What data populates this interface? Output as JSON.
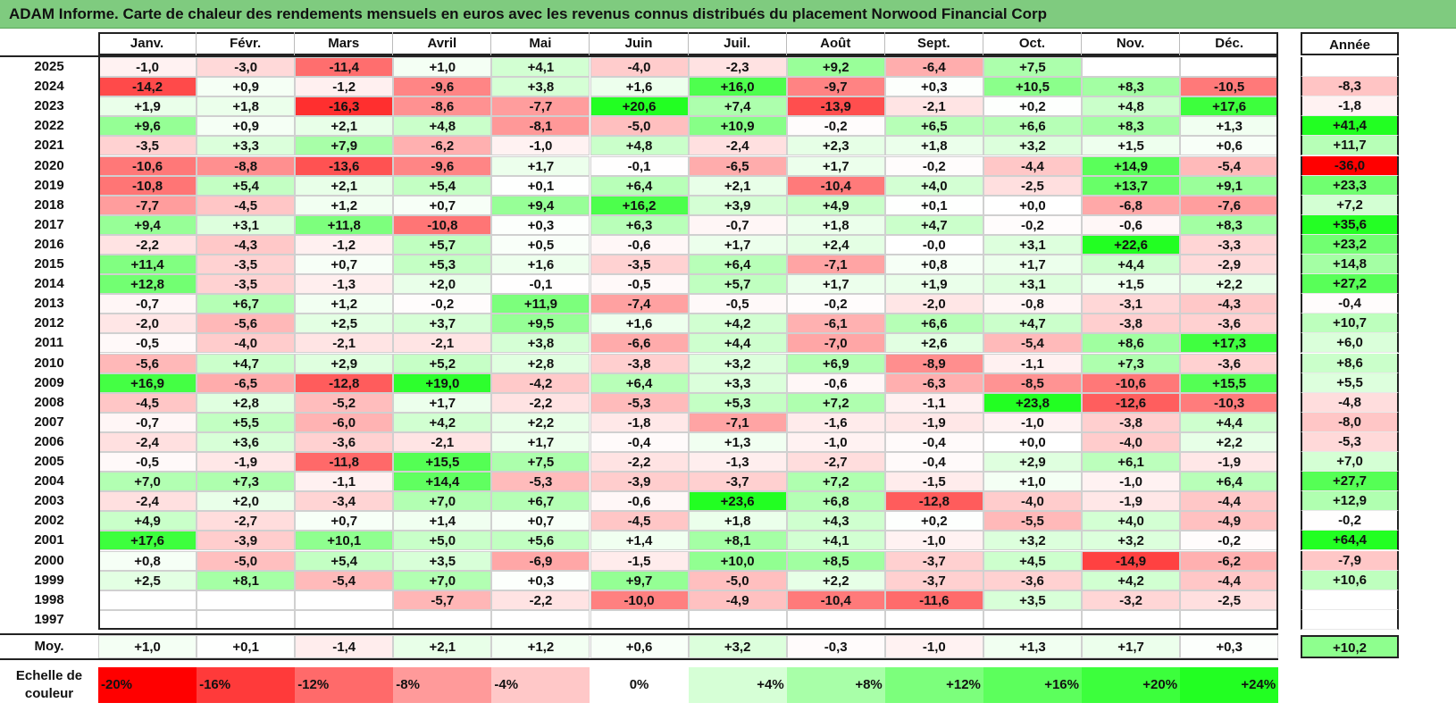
{
  "title": "ADAM Informe. Carte de chaleur des rendements mensuels en euros avec les revenus connus distribués du placement Norwood Financial Corp",
  "chart_data": {
    "type": "heatmap",
    "columns": [
      "Janv.",
      "Févr.",
      "Mars",
      "Avril",
      "Mai",
      "Juin",
      "Juil.",
      "Août",
      "Sept.",
      "Oct.",
      "Nov.",
      "Déc."
    ],
    "year_column": "Année",
    "rows": [
      {
        "year": "2025",
        "months": [
          "-1,0",
          "-3,0",
          "-11,4",
          "+1,0",
          "+4,1",
          "-4,0",
          "-2,3",
          "+9,2",
          "-6,4",
          "+7,5",
          "",
          ""
        ],
        "annual": ""
      },
      {
        "year": "2024",
        "months": [
          "-14,2",
          "+0,9",
          "-1,2",
          "-9,6",
          "+3,8",
          "+1,6",
          "+16,0",
          "-9,7",
          "+0,3",
          "+10,5",
          "+8,3",
          "-10,5"
        ],
        "annual": "-8,3"
      },
      {
        "year": "2023",
        "months": [
          "+1,9",
          "+1,8",
          "-16,3",
          "-8,6",
          "-7,7",
          "+20,6",
          "+7,4",
          "-13,9",
          "-2,1",
          "+0,2",
          "+4,8",
          "+17,6"
        ],
        "annual": "-1,8"
      },
      {
        "year": "2022",
        "months": [
          "+9,6",
          "+0,9",
          "+2,1",
          "+4,8",
          "-8,1",
          "-5,0",
          "+10,9",
          "-0,2",
          "+6,5",
          "+6,6",
          "+8,3",
          "+1,3"
        ],
        "annual": "+41,4"
      },
      {
        "year": "2021",
        "months": [
          "-3,5",
          "+3,3",
          "+7,9",
          "-6,2",
          "-1,0",
          "+4,8",
          "-2,4",
          "+2,3",
          "+1,8",
          "+3,2",
          "+1,5",
          "+0,6"
        ],
        "annual": "+11,7"
      },
      {
        "year": "2020",
        "months": [
          "-10,6",
          "-8,8",
          "-13,6",
          "-9,6",
          "+1,7",
          "-0,1",
          "-6,5",
          "+1,7",
          "-0,2",
          "-4,4",
          "+14,9",
          "-5,4"
        ],
        "annual": "-36,0"
      },
      {
        "year": "2019",
        "months": [
          "-10,8",
          "+5,4",
          "+2,1",
          "+5,4",
          "+0,1",
          "+6,4",
          "+2,1",
          "-10,4",
          "+4,0",
          "-2,5",
          "+13,7",
          "+9,1"
        ],
        "annual": "+23,3"
      },
      {
        "year": "2018",
        "months": [
          "-7,7",
          "-4,5",
          "+1,2",
          "+0,7",
          "+9,4",
          "+16,2",
          "+3,9",
          "+4,9",
          "+0,1",
          "+0,0",
          "-6,8",
          "-7,6"
        ],
        "annual": "+7,2"
      },
      {
        "year": "2017",
        "months": [
          "+9,4",
          "+3,1",
          "+11,8",
          "-10,8",
          "+0,3",
          "+6,3",
          "-0,7",
          "+1,8",
          "+4,7",
          "-0,2",
          "-0,6",
          "+8,3"
        ],
        "annual": "+35,6"
      },
      {
        "year": "2016",
        "months": [
          "-2,2",
          "-4,3",
          "-1,2",
          "+5,7",
          "+0,5",
          "-0,6",
          "+1,7",
          "+2,4",
          "-0,0",
          "+3,1",
          "+22,6",
          "-3,3"
        ],
        "annual": "+23,2"
      },
      {
        "year": "2015",
        "months": [
          "+11,4",
          "-3,5",
          "+0,7",
          "+5,3",
          "+1,6",
          "-3,5",
          "+6,4",
          "-7,1",
          "+0,8",
          "+1,7",
          "+4,4",
          "-2,9"
        ],
        "annual": "+14,8"
      },
      {
        "year": "2014",
        "months": [
          "+12,8",
          "-3,5",
          "-1,3",
          "+2,0",
          "-0,1",
          "-0,5",
          "+5,7",
          "+1,7",
          "+1,9",
          "+3,1",
          "+1,5",
          "+2,2"
        ],
        "annual": "+27,2"
      },
      {
        "year": "2013",
        "months": [
          "-0,7",
          "+6,7",
          "+1,2",
          "-0,2",
          "+11,9",
          "-7,4",
          "-0,5",
          "-0,2",
          "-2,0",
          "-0,8",
          "-3,1",
          "-4,3"
        ],
        "annual": "-0,4"
      },
      {
        "year": "2012",
        "months": [
          "-2,0",
          "-5,6",
          "+2,5",
          "+3,7",
          "+9,5",
          "+1,6",
          "+4,2",
          "-6,1",
          "+6,6",
          "+4,7",
          "-3,8",
          "-3,6"
        ],
        "annual": "+10,7"
      },
      {
        "year": "2011",
        "months": [
          "-0,5",
          "-4,0",
          "-2,1",
          "-2,1",
          "+3,8",
          "-6,6",
          "+4,4",
          "-7,0",
          "+2,6",
          "-5,4",
          "+8,6",
          "+17,3"
        ],
        "annual": "+6,0"
      },
      {
        "year": "2010",
        "months": [
          "-5,6",
          "+4,7",
          "+2,9",
          "+5,2",
          "+2,8",
          "-3,8",
          "+3,2",
          "+6,9",
          "-8,9",
          "-1,1",
          "+7,3",
          "-3,6"
        ],
        "annual": "+8,6"
      },
      {
        "year": "2009",
        "months": [
          "+16,9",
          "-6,5",
          "-12,8",
          "+19,0",
          "-4,2",
          "+6,4",
          "+3,3",
          "-0,6",
          "-6,3",
          "-8,5",
          "-10,6",
          "+15,5"
        ],
        "annual": "+5,5"
      },
      {
        "year": "2008",
        "months": [
          "-4,5",
          "+2,8",
          "-5,2",
          "+1,7",
          "-2,2",
          "-5,3",
          "+5,3",
          "+7,2",
          "-1,1",
          "+23,8",
          "-12,6",
          "-10,3"
        ],
        "annual": "-4,8"
      },
      {
        "year": "2007",
        "months": [
          "-0,7",
          "+5,5",
          "-6,0",
          "+4,2",
          "+2,2",
          "-1,8",
          "-7,1",
          "-1,6",
          "-1,9",
          "-1,0",
          "-3,8",
          "+4,4"
        ],
        "annual": "-8,0"
      },
      {
        "year": "2006",
        "months": [
          "-2,4",
          "+3,6",
          "-3,6",
          "-2,1",
          "+1,7",
          "-0,4",
          "+1,3",
          "-1,0",
          "-0,4",
          "+0,0",
          "-4,0",
          "+2,2"
        ],
        "annual": "-5,3"
      },
      {
        "year": "2005",
        "months": [
          "-0,5",
          "-1,9",
          "-11,8",
          "+15,5",
          "+7,5",
          "-2,2",
          "-1,3",
          "-2,7",
          "-0,4",
          "+2,9",
          "+6,1",
          "-1,9"
        ],
        "annual": "+7,0"
      },
      {
        "year": "2004",
        "months": [
          "+7,0",
          "+7,3",
          "-1,1",
          "+14,4",
          "-5,3",
          "-3,9",
          "-3,7",
          "+7,2",
          "-1,5",
          "+1,0",
          "-1,0",
          "+6,4"
        ],
        "annual": "+27,7"
      },
      {
        "year": "2003",
        "months": [
          "-2,4",
          "+2,0",
          "-3,4",
          "+7,0",
          "+6,7",
          "-0,6",
          "+23,6",
          "+6,8",
          "-12,8",
          "-4,0",
          "-1,9",
          "-4,4"
        ],
        "annual": "+12,9"
      },
      {
        "year": "2002",
        "months": [
          "+4,9",
          "-2,7",
          "+0,7",
          "+1,4",
          "+0,7",
          "-4,5",
          "+1,8",
          "+4,3",
          "+0,2",
          "-5,5",
          "+4,0",
          "-4,9"
        ],
        "annual": "-0,2"
      },
      {
        "year": "2001",
        "months": [
          "+17,6",
          "-3,9",
          "+10,1",
          "+5,0",
          "+5,6",
          "+1,4",
          "+8,1",
          "+4,1",
          "-1,0",
          "+3,2",
          "+3,2",
          "-0,2"
        ],
        "annual": "+64,4"
      },
      {
        "year": "2000",
        "months": [
          "+0,8",
          "-5,0",
          "+5,4",
          "+3,5",
          "-6,9",
          "-1,5",
          "+10,0",
          "+8,5",
          "-3,7",
          "+4,5",
          "-14,9",
          "-6,2"
        ],
        "annual": "-7,9"
      },
      {
        "year": "1999",
        "months": [
          "+2,5",
          "+8,1",
          "-5,4",
          "+7,0",
          "+0,3",
          "+9,7",
          "-5,0",
          "+2,2",
          "-3,7",
          "-3,6",
          "+4,2",
          "-4,4"
        ],
        "annual": "+10,6"
      },
      {
        "year": "1998",
        "months": [
          "",
          "",
          "",
          "-5,7",
          "-2,2",
          "-10,0",
          "-4,9",
          "-10,4",
          "-11,6",
          "+3,5",
          "-3,2",
          "-2,5"
        ],
        "annual": ""
      },
      {
        "year": "1997",
        "months": [
          "",
          "",
          "",
          "",
          "",
          "",
          "",
          "",
          "",
          "",
          "",
          ""
        ],
        "annual": ""
      }
    ],
    "average": {
      "label": "Moy.",
      "months": [
        "+1,0",
        "+0,1",
        "-1,4",
        "+2,1",
        "+1,2",
        "+0,6",
        "+3,2",
        "-0,3",
        "-1,0",
        "+1,3",
        "+1,7",
        "+0,3"
      ],
      "annual": "+10,2"
    },
    "scale": {
      "label": "Echelle de couleur",
      "steps": [
        "-20%",
        "-16%",
        "-12%",
        "-8%",
        "-4%",
        "0%",
        "+4%",
        "+8%",
        "+12%",
        "+16%",
        "+20%",
        "+24%"
      ]
    },
    "colors": {
      "negative_max": "#ff0000",
      "positive_max": "#22ff22",
      "neutral": "#ffffff",
      "title_bg": "#7fcb7f"
    }
  }
}
